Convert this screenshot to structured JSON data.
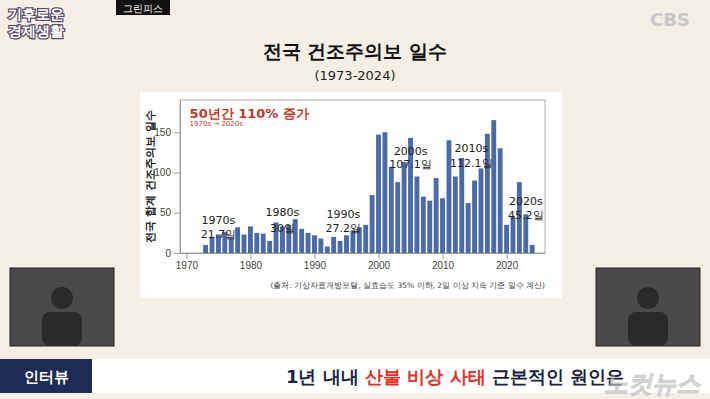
{
  "chart_data": {
    "type": "bar",
    "title": "전국 건조주의보 일수",
    "subtitle": "(1973-2024)",
    "y_label": "전국 합계 건조주의보 일수",
    "source": "(출처: 기상자료개방포털, 실효습도 35% 이하, 2일 이상 지속 기준 일수 계산)",
    "x": [
      1973,
      1974,
      1975,
      1976,
      1977,
      1978,
      1979,
      1980,
      1981,
      1982,
      1983,
      1984,
      1985,
      1986,
      1987,
      1988,
      1989,
      1990,
      1991,
      1992,
      1993,
      1994,
      1995,
      1996,
      1997,
      1998,
      1999,
      2000,
      2001,
      2002,
      2003,
      2004,
      2005,
      2006,
      2007,
      2008,
      2009,
      2010,
      2011,
      2012,
      2013,
      2014,
      2015,
      2016,
      2017,
      2018,
      2019,
      2020,
      2021,
      2022,
      2023,
      2024
    ],
    "values": [
      10,
      20,
      23,
      26,
      18,
      32,
      23,
      33,
      25,
      24,
      15,
      38,
      33,
      35,
      42,
      30,
      25,
      22,
      18,
      8,
      20,
      15,
      22,
      28,
      32,
      35,
      72,
      147,
      150,
      107,
      88,
      113,
      143,
      95,
      70,
      65,
      93,
      68,
      140,
      95,
      118,
      62,
      90,
      105,
      148,
      165,
      130,
      35,
      45,
      88,
      48,
      10
    ],
    "color": "#4a6aa8",
    "xlim": [
      1969,
      2026
    ],
    "xticks": [
      1970,
      1980,
      1990,
      2000,
      2010,
      2020
    ],
    "ylim": [
      0,
      190
    ],
    "yticks": [
      0,
      50,
      100,
      150
    ],
    "grid": false,
    "annotations": [
      {
        "text": "50년간 110% 증가",
        "x": 1970.5,
        "y": 168,
        "color": "#c0392b"
      },
      {
        "text": "1970s → 2020s",
        "x": 1970.5,
        "y": 158,
        "color": "#c0392b"
      },
      {
        "text": "1970s",
        "x": 1975,
        "y": 36,
        "color": "#222222"
      },
      {
        "text": "21.7일",
        "x": 1975,
        "y": 19,
        "color": "#222222"
      },
      {
        "text": "1980s",
        "x": 1985,
        "y": 46,
        "color": "#222222"
      },
      {
        "text": "30일",
        "x": 1985,
        "y": 26,
        "color": "#222222"
      },
      {
        "text": "1990s",
        "x": 1994.5,
        "y": 44,
        "color": "#222222"
      },
      {
        "text": "27.2일",
        "x": 1994.5,
        "y": 26,
        "color": "#222222"
      },
      {
        "text": "2000s",
        "x": 2005,
        "y": 122,
        "color": "#222222"
      },
      {
        "text": "107.1일",
        "x": 2005,
        "y": 105,
        "color": "#222222"
      },
      {
        "text": "2010s",
        "x": 2014.5,
        "y": 125,
        "color": "#222222"
      },
      {
        "text": "112.1일",
        "x": 2014.5,
        "y": 107,
        "color": "#222222"
      },
      {
        "text": "2020s",
        "x": 2023,
        "y": 60,
        "color": "#222222"
      },
      {
        "text": "45.2일",
        "x": 2023,
        "y": 42,
        "color": "#222222"
      }
    ]
  },
  "frame": {
    "logo": [
      "기후로운",
      "경제생활"
    ],
    "tag": "그린피스",
    "channel": "CBS",
    "banner_label": "인터뷰",
    "headline": [
      {
        "text": "1년 내내 ",
        "color": "#1a2340"
      },
      {
        "text": "산불 비상 사태",
        "color": "#e0312a"
      },
      {
        "text": " 근본적인 원인은",
        "color": "#1a2340"
      }
    ],
    "watermark": "노컷뉴스"
  }
}
